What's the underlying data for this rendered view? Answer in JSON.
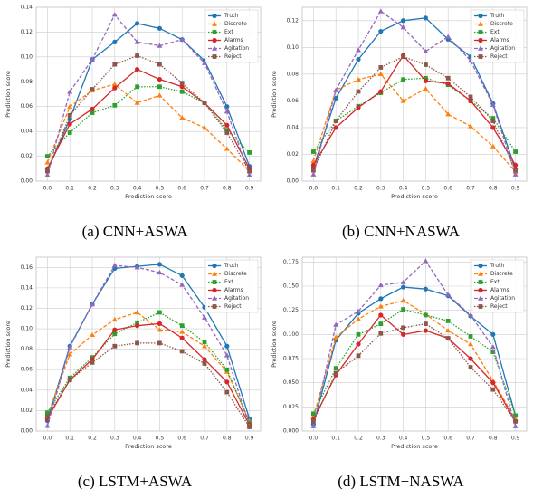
{
  "chart_data": [
    {
      "type": "line",
      "caption": "(a) CNN+ASWA",
      "xlabel": "Prediction score",
      "ylabel": "Prediction score",
      "categories": [
        "0.0",
        "0.1",
        "0.2",
        "0.3",
        "0.4",
        "0.5",
        "0.6",
        "0.7",
        "0.8",
        "0.9"
      ],
      "ylim": [
        0,
        0.14
      ],
      "yticks": [
        {
          "value": 0,
          "label": "0.00"
        },
        {
          "value": 0.02,
          "label": "0.02"
        },
        {
          "value": 0.04,
          "label": "0.04"
        },
        {
          "value": 0.06,
          "label": "0.06"
        },
        {
          "value": 0.08,
          "label": "0.08"
        },
        {
          "value": 0.1,
          "label": "0.10"
        },
        {
          "value": 0.12,
          "label": "0.12"
        },
        {
          "value": 0.14,
          "label": "0.14"
        }
      ],
      "grid": true,
      "legend": "upper right",
      "series": [
        {
          "name": "Truth",
          "color": "#1f77b4",
          "linestyle": "solid",
          "marker": "circle",
          "values": [
            0.008,
            0.05,
            0.098,
            0.112,
            0.127,
            0.123,
            0.114,
            0.097,
            0.06,
            0.012
          ]
        },
        {
          "name": "Discrete",
          "color": "#ff7f0e",
          "linestyle": "dashed",
          "marker": "triangle",
          "values": [
            0.015,
            0.06,
            0.073,
            0.078,
            0.063,
            0.069,
            0.051,
            0.043,
            0.026,
            0.008
          ]
        },
        {
          "name": "Ext",
          "color": "#2ca02c",
          "linestyle": "dotted",
          "marker": "square",
          "values": [
            0.02,
            0.039,
            0.055,
            0.061,
            0.076,
            0.076,
            0.072,
            0.063,
            0.041,
            0.023
          ]
        },
        {
          "name": "Alarms",
          "color": "#d62728",
          "linestyle": "solid",
          "marker": "circle",
          "values": [
            0.01,
            0.046,
            0.058,
            0.075,
            0.09,
            0.082,
            0.076,
            0.063,
            0.045,
            0.01
          ]
        },
        {
          "name": "Agitation",
          "color": "#9467bd",
          "linestyle": "dashed",
          "marker": "triangle",
          "values": [
            0.005,
            0.072,
            0.098,
            0.134,
            0.112,
            0.109,
            0.114,
            0.095,
            0.056,
            0.005
          ]
        },
        {
          "name": "Reject",
          "color": "#8c564b",
          "linestyle": "dotted",
          "marker": "square",
          "values": [
            0.008,
            0.053,
            0.074,
            0.094,
            0.101,
            0.094,
            0.079,
            0.063,
            0.039,
            0.008
          ]
        }
      ]
    },
    {
      "type": "line",
      "caption": "(b) CNN+NASWA",
      "xlabel": "Prediction score",
      "ylabel": "Prediction score",
      "categories": [
        "0.0",
        "0.1",
        "0.2",
        "0.3",
        "0.4",
        "0.5",
        "0.6",
        "0.7",
        "0.8",
        "0.9"
      ],
      "ylim": [
        0,
        0.13
      ],
      "yticks": [
        {
          "value": 0,
          "label": "0.00"
        },
        {
          "value": 0.02,
          "label": "0.02"
        },
        {
          "value": 0.04,
          "label": "0.04"
        },
        {
          "value": 0.06,
          "label": "0.06"
        },
        {
          "value": 0.08,
          "label": "0.08"
        },
        {
          "value": 0.1,
          "label": "0.10"
        },
        {
          "value": 0.12,
          "label": "0.12"
        }
      ],
      "grid": true,
      "legend": "upper right",
      "series": [
        {
          "name": "Truth",
          "color": "#1f77b4",
          "linestyle": "solid",
          "marker": "circle",
          "values": [
            0.01,
            0.062,
            0.091,
            0.112,
            0.12,
            0.122,
            0.106,
            0.093,
            0.058,
            0.009
          ]
        },
        {
          "name": "Discrete",
          "color": "#ff7f0e",
          "linestyle": "dashed",
          "marker": "triangle",
          "values": [
            0.015,
            0.068,
            0.076,
            0.08,
            0.06,
            0.069,
            0.05,
            0.041,
            0.026,
            0.007
          ]
        },
        {
          "name": "Ext",
          "color": "#2ca02c",
          "linestyle": "dotted",
          "marker": "square",
          "values": [
            0.022,
            0.045,
            0.056,
            0.066,
            0.076,
            0.077,
            0.072,
            0.06,
            0.047,
            0.022
          ]
        },
        {
          "name": "Alarms",
          "color": "#d62728",
          "linestyle": "solid",
          "marker": "circle",
          "values": [
            0.012,
            0.04,
            0.055,
            0.067,
            0.094,
            0.075,
            0.073,
            0.06,
            0.04,
            0.012
          ]
        },
        {
          "name": "Agitation",
          "color": "#9467bd",
          "linestyle": "dashed",
          "marker": "triangle",
          "values": [
            0.005,
            0.068,
            0.098,
            0.127,
            0.115,
            0.097,
            0.108,
            0.09,
            0.057,
            0.005
          ]
        },
        {
          "name": "Reject",
          "color": "#8c564b",
          "linestyle": "dotted",
          "marker": "square",
          "values": [
            0.008,
            0.045,
            0.067,
            0.085,
            0.093,
            0.087,
            0.077,
            0.063,
            0.045,
            0.008
          ]
        }
      ]
    },
    {
      "type": "line",
      "caption": "(c) LSTM+ASWA",
      "xlabel": "Prediction score",
      "ylabel": "Prediction score",
      "categories": [
        "0.0",
        "0.1",
        "0.2",
        "0.3",
        "0.4",
        "0.5",
        "0.6",
        "0.7",
        "0.8",
        "0.9"
      ],
      "ylim": [
        0,
        0.17
      ],
      "yticks": [
        {
          "value": 0,
          "label": "0.00"
        },
        {
          "value": 0.02,
          "label": "0.02"
        },
        {
          "value": 0.04,
          "label": "0.04"
        },
        {
          "value": 0.06,
          "label": "0.06"
        },
        {
          "value": 0.08,
          "label": "0.08"
        },
        {
          "value": 0.1,
          "label": "0.10"
        },
        {
          "value": 0.12,
          "label": "0.12"
        },
        {
          "value": 0.14,
          "label": "0.14"
        },
        {
          "value": 0.16,
          "label": "0.16"
        }
      ],
      "grid": true,
      "legend": "upper right",
      "series": [
        {
          "name": "Truth",
          "color": "#1f77b4",
          "linestyle": "solid",
          "marker": "circle",
          "values": [
            0.01,
            0.083,
            0.124,
            0.159,
            0.161,
            0.163,
            0.152,
            0.121,
            0.083,
            0.012
          ]
        },
        {
          "name": "Discrete",
          "color": "#ff7f0e",
          "linestyle": "dashed",
          "marker": "triangle",
          "values": [
            0.015,
            0.075,
            0.094,
            0.109,
            0.116,
            0.099,
            0.097,
            0.083,
            0.058,
            0.01
          ]
        },
        {
          "name": "Ext",
          "color": "#2ca02c",
          "linestyle": "dotted",
          "marker": "square",
          "values": [
            0.018,
            0.052,
            0.072,
            0.095,
            0.106,
            0.116,
            0.103,
            0.087,
            0.06,
            0.008
          ]
        },
        {
          "name": "Alarms",
          "color": "#d62728",
          "linestyle": "solid",
          "marker": "circle",
          "values": [
            0.012,
            0.05,
            0.07,
            0.099,
            0.103,
            0.105,
            0.091,
            0.07,
            0.048,
            0.006
          ]
        },
        {
          "name": "Agitation",
          "color": "#9467bd",
          "linestyle": "dashed",
          "marker": "triangle",
          "values": [
            0.005,
            0.082,
            0.124,
            0.162,
            0.16,
            0.155,
            0.143,
            0.111,
            0.074,
            0.005
          ]
        },
        {
          "name": "Reject",
          "color": "#8c564b",
          "linestyle": "dotted",
          "marker": "square",
          "values": [
            0.014,
            0.05,
            0.067,
            0.083,
            0.086,
            0.086,
            0.078,
            0.066,
            0.038,
            0.004
          ]
        }
      ]
    },
    {
      "type": "line",
      "caption": "(d) LSTM+NASWA",
      "xlabel": "Prediction score",
      "ylabel": "Prediction score",
      "categories": [
        "0.0",
        "0.1",
        "0.2",
        "0.3",
        "0.4",
        "0.5",
        "0.6",
        "0.7",
        "0.8",
        "0.9"
      ],
      "ylim": [
        0,
        0.18
      ],
      "yticks": [
        {
          "value": 0,
          "label": "0.000"
        },
        {
          "value": 0.025,
          "label": "0.025"
        },
        {
          "value": 0.05,
          "label": "0.050"
        },
        {
          "value": 0.075,
          "label": "0.075"
        },
        {
          "value": 0.1,
          "label": "0.100"
        },
        {
          "value": 0.125,
          "label": "0.125"
        },
        {
          "value": 0.15,
          "label": "0.150"
        },
        {
          "value": 0.175,
          "label": "0.175"
        }
      ],
      "grid": true,
      "legend": "upper right",
      "series": [
        {
          "name": "Truth",
          "color": "#1f77b4",
          "linestyle": "solid",
          "marker": "circle",
          "values": [
            0.007,
            0.094,
            0.122,
            0.137,
            0.149,
            0.147,
            0.14,
            0.119,
            0.1,
            0.016
          ]
        },
        {
          "name": "Discrete",
          "color": "#ff7f0e",
          "linestyle": "dashed",
          "marker": "triangle",
          "values": [
            0.015,
            0.097,
            0.116,
            0.129,
            0.135,
            0.121,
            0.104,
            0.09,
            0.052,
            0.012
          ]
        },
        {
          "name": "Ext",
          "color": "#2ca02c",
          "linestyle": "dotted",
          "marker": "square",
          "values": [
            0.018,
            0.065,
            0.1,
            0.111,
            0.126,
            0.12,
            0.114,
            0.098,
            0.082,
            0.016
          ]
        },
        {
          "name": "Alarms",
          "color": "#d62728",
          "linestyle": "solid",
          "marker": "circle",
          "values": [
            0.012,
            0.058,
            0.09,
            0.12,
            0.1,
            0.104,
            0.096,
            0.075,
            0.05,
            0.01
          ]
        },
        {
          "name": "Agitation",
          "color": "#9467bd",
          "linestyle": "dashed",
          "marker": "triangle",
          "values": [
            0.005,
            0.11,
            0.124,
            0.151,
            0.154,
            0.176,
            0.141,
            0.12,
            0.087,
            0.005
          ]
        },
        {
          "name": "Reject",
          "color": "#8c564b",
          "linestyle": "dotted",
          "marker": "square",
          "values": [
            0.01,
            0.06,
            0.078,
            0.101,
            0.107,
            0.111,
            0.096,
            0.066,
            0.043,
            0.01
          ]
        }
      ]
    }
  ]
}
